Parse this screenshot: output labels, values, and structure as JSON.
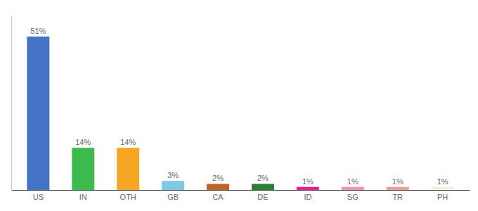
{
  "chart_data": {
    "type": "bar",
    "categories": [
      "US",
      "IN",
      "OTH",
      "GB",
      "CA",
      "DE",
      "ID",
      "SG",
      "TR",
      "PH"
    ],
    "values": [
      51,
      14,
      14,
      3,
      2,
      2,
      1,
      1,
      1,
      1
    ],
    "value_labels": [
      "51%",
      "14%",
      "14%",
      "3%",
      "2%",
      "2%",
      "1%",
      "1%",
      "1%",
      "1%"
    ],
    "colors": [
      "#4472c4",
      "#3dba4e",
      "#f5a623",
      "#7ec8e3",
      "#c0622b",
      "#2e7d32",
      "#e91e8c",
      "#f48fb1",
      "#e8a090",
      "#f5f0dc"
    ],
    "ylim": [
      0,
      58
    ],
    "data_labels": true,
    "tick_labels": "x"
  }
}
